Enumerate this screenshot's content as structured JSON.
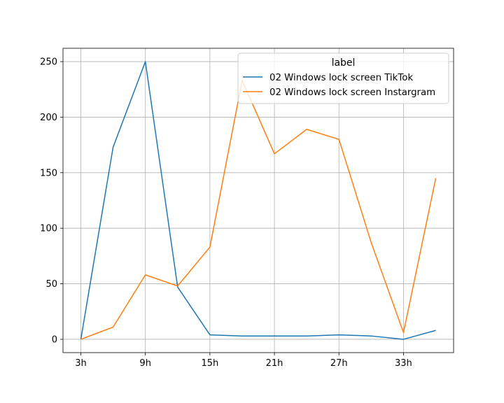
{
  "chart_data": {
    "type": "line",
    "title": "",
    "xlabel": "",
    "ylabel": "",
    "categories": [
      "3h",
      "6h",
      "9h",
      "12h",
      "15h",
      "18h",
      "21h",
      "24h",
      "27h",
      "30h",
      "33h",
      "36h"
    ],
    "xtick_labels": [
      "3h",
      "9h",
      "15h",
      "21h",
      "27h",
      "33h"
    ],
    "ylim": [
      -12,
      262
    ],
    "yticks": [
      0,
      50,
      100,
      150,
      200,
      250
    ],
    "grid": true,
    "legend": {
      "title": "label",
      "placement": "top-right"
    },
    "series": [
      {
        "name": "02 Windows lock screen TikTok",
        "color": "#1f77b4",
        "values": [
          0,
          173,
          250,
          47,
          4,
          3,
          3,
          3,
          4,
          3,
          0,
          8
        ]
      },
      {
        "name": "02 Windows lock screen Instargram",
        "color": "#ff7f0e",
        "values": [
          0,
          11,
          58,
          48,
          83,
          233,
          167,
          189,
          180,
          87,
          6,
          145
        ]
      }
    ]
  }
}
